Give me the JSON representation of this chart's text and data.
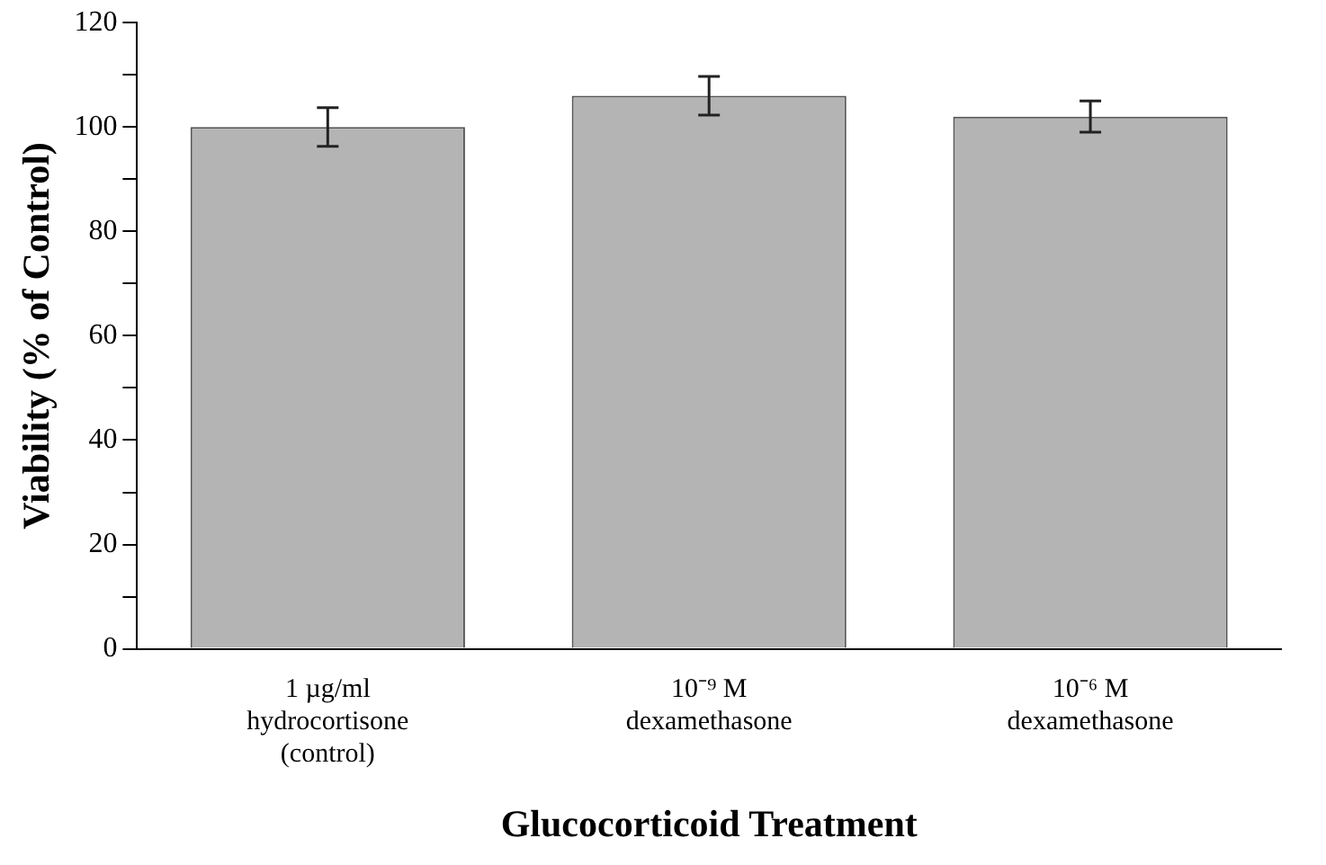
{
  "chart_data": {
    "type": "bar",
    "xlabel": "Glucocorticoid Treatment",
    "ylabel": "Viability (% of Control)",
    "categories": [
      "1 µg/ml\nhydrocortisone\n(control)",
      "10⁻⁹ M\ndexamethasone",
      "10⁻⁶ M\ndexamethasone"
    ],
    "values": [
      100,
      106,
      102
    ],
    "errors": [
      3.7,
      3.7,
      3
    ],
    "color": "#b4b4b4",
    "ylim": [
      0,
      120
    ],
    "yticks": [
      0,
      {
        "value": 10,
        "label": null
      },
      20,
      {
        "value": 30,
        "label": null
      },
      40,
      {
        "value": 50,
        "label": null
      },
      60,
      {
        "value": 70,
        "label": null
      },
      80,
      {
        "value": 90,
        "label": null
      },
      100,
      {
        "value": 110,
        "label": null
      },
      120
    ],
    "grid": false,
    "legend": false
  }
}
